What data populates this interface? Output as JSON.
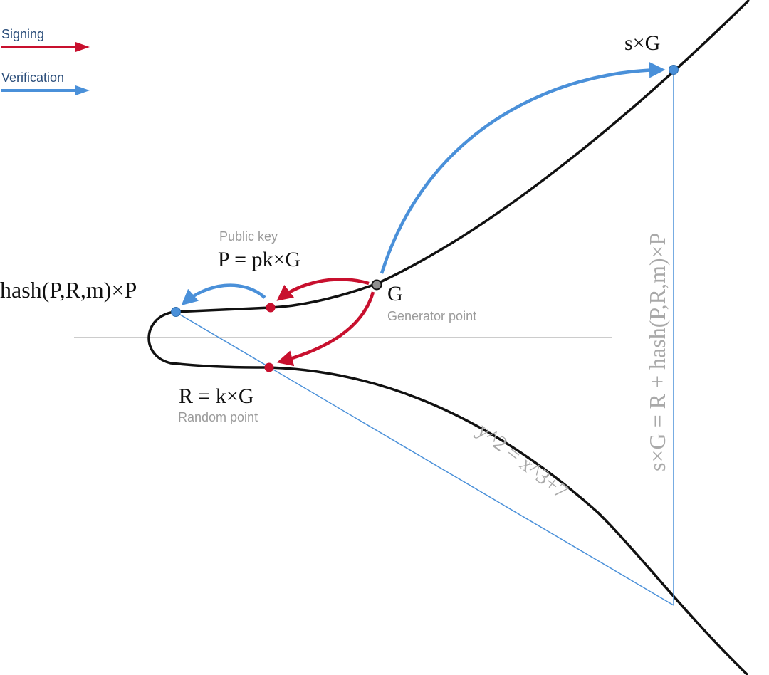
{
  "legend": {
    "signing_label": "Signing",
    "verification_label": "Verification"
  },
  "colors": {
    "signing": "#c8102e",
    "verification": "#4a90d9",
    "curve": "#111111",
    "axis": "#bcbcbc",
    "generator_point": "#8f8f8f",
    "sub_label": "#9a9a9a"
  },
  "points": {
    "sG": {
      "label": "s×G"
    },
    "G": {
      "label": "G",
      "sub_label": "Generator point"
    },
    "P": {
      "label": "P = pk×G",
      "sub_label": "Public key"
    },
    "hashP": {
      "label": "hash(P,R,m)×P"
    },
    "R": {
      "label": "R = k×G",
      "sub_label": "Random point"
    }
  },
  "curve_equation": "y^2 = x^3+7",
  "verification_equation": "s×G = R + hash(P,R,m)×P"
}
